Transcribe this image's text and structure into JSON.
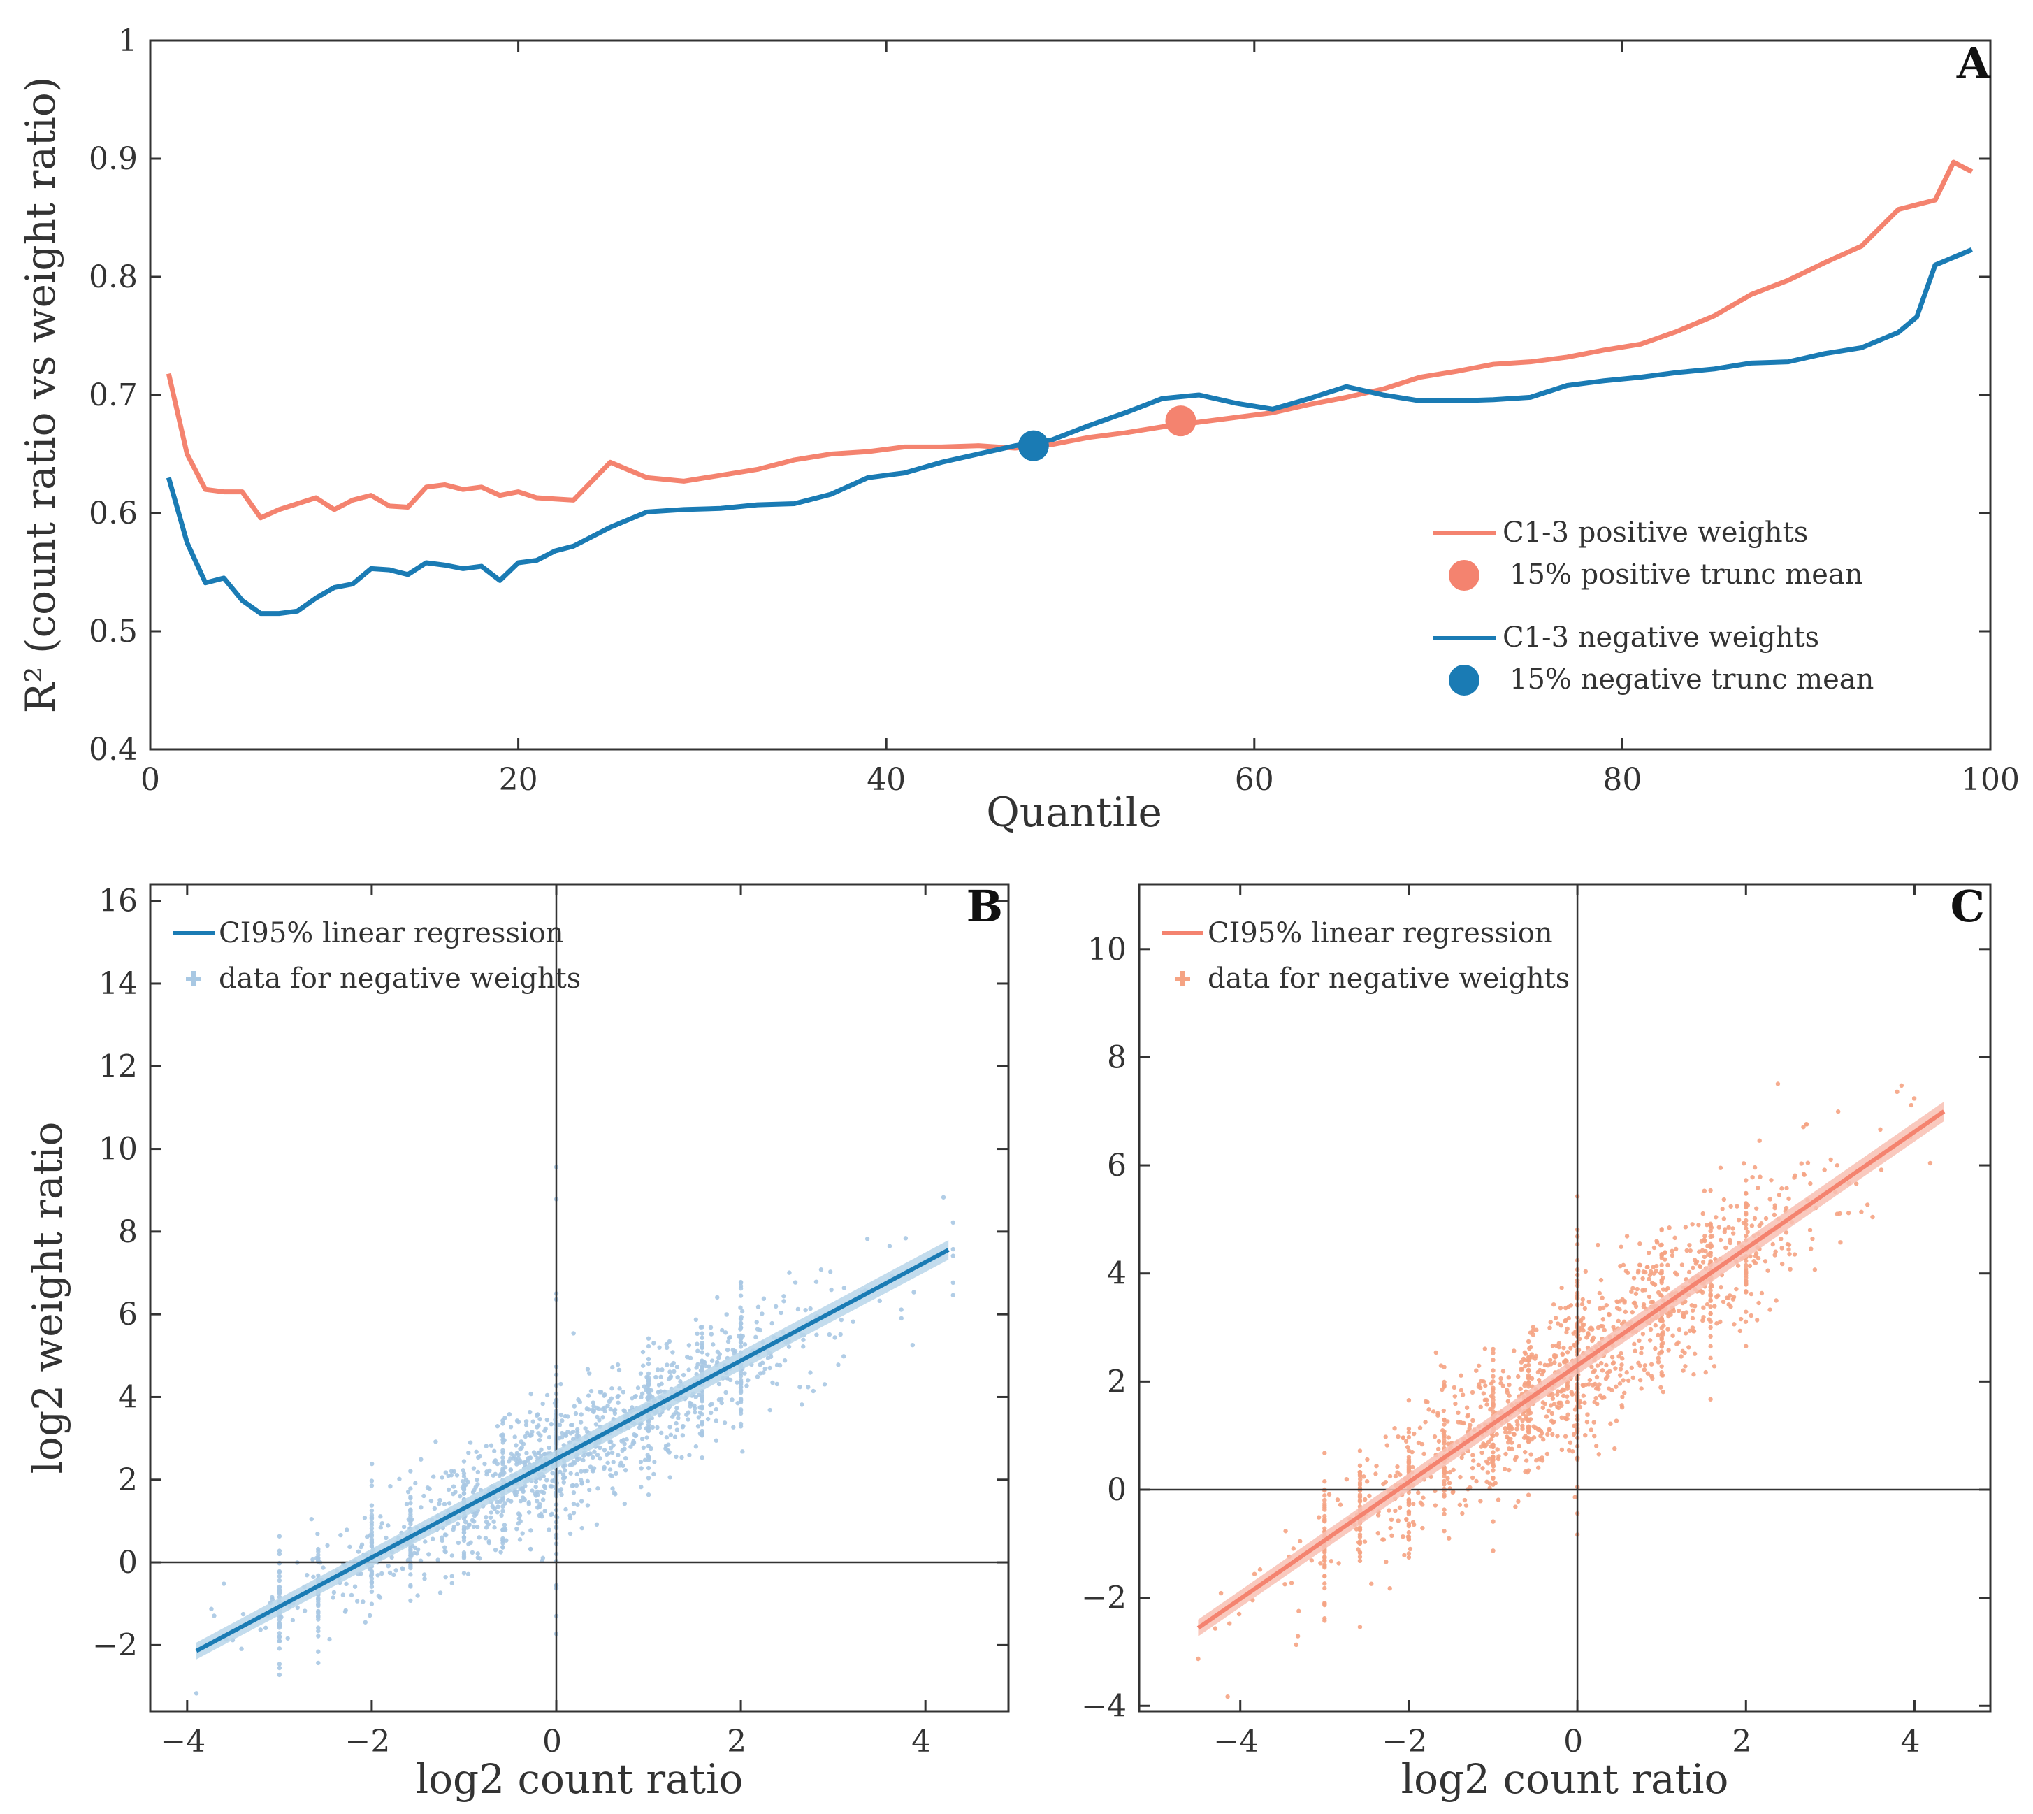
{
  "colors": {
    "positive": "#f4836f",
    "negative": "#1a7bb4",
    "neg_points": "#a8c8e3",
    "pos_points": "#f5a383",
    "ci_neg": "#b9d6ea",
    "ci_pos": "#f8c0b3"
  },
  "chart_data": [
    {
      "panel": "A",
      "type": "line",
      "xlabel": "Quantile",
      "ylabel": "R² (count ratio vs weight ratio)",
      "xlim": [
        0,
        100
      ],
      "ylim": [
        0.4,
        1
      ],
      "xticks": [
        "0",
        "20",
        "40",
        "60",
        "80",
        "100"
      ],
      "yticks": [
        "0.4",
        "0.5",
        "0.6",
        "0.7",
        "0.8",
        "0.9",
        "1"
      ],
      "legend_position": "lower-right",
      "series": [
        {
          "name": "C1-3 positive weights",
          "color_key": "positive",
          "x": [
            1,
            2,
            3,
            4,
            5,
            6,
            7,
            8,
            9,
            10,
            11,
            12,
            13,
            14,
            15,
            16,
            17,
            18,
            19,
            20,
            21,
            22,
            23,
            25,
            27,
            29,
            31,
            33,
            35,
            37,
            39,
            41,
            43,
            45,
            47,
            49,
            51,
            53,
            55,
            57,
            59,
            61,
            63,
            65,
            67,
            69,
            71,
            73,
            75,
            77,
            79,
            81,
            83,
            85,
            87,
            89,
            91,
            93,
            95,
            97,
            98,
            99
          ],
          "y": [
            0.718,
            0.65,
            0.62,
            0.618,
            0.618,
            0.596,
            0.603,
            0.608,
            0.613,
            0.603,
            0.611,
            0.615,
            0.606,
            0.605,
            0.622,
            0.624,
            0.62,
            0.622,
            0.615,
            0.618,
            0.613,
            0.612,
            0.611,
            0.643,
            0.63,
            0.627,
            0.632,
            0.637,
            0.645,
            0.65,
            0.652,
            0.656,
            0.656,
            0.657,
            0.655,
            0.658,
            0.664,
            0.668,
            0.673,
            0.677,
            0.681,
            0.685,
            0.692,
            0.698,
            0.705,
            0.715,
            0.72,
            0.726,
            0.728,
            0.732,
            0.738,
            0.743,
            0.754,
            0.767,
            0.785,
            0.797,
            0.812,
            0.826,
            0.857,
            0.865,
            0.897,
            0.889
          ]
        },
        {
          "name": "C1-3 negative weights",
          "color_key": "negative",
          "x": [
            1,
            2,
            3,
            4,
            5,
            6,
            7,
            8,
            9,
            10,
            11,
            12,
            13,
            14,
            15,
            16,
            17,
            18,
            19,
            20,
            21,
            22,
            23,
            25,
            27,
            29,
            31,
            33,
            35,
            37,
            39,
            41,
            43,
            45,
            47,
            49,
            51,
            53,
            55,
            57,
            59,
            61,
            63,
            65,
            67,
            69,
            71,
            73,
            75,
            77,
            79,
            81,
            83,
            85,
            87,
            89,
            91,
            93,
            95,
            96,
            97,
            99
          ],
          "y": [
            0.63,
            0.575,
            0.541,
            0.545,
            0.526,
            0.515,
            0.515,
            0.517,
            0.528,
            0.537,
            0.54,
            0.553,
            0.552,
            0.548,
            0.558,
            0.556,
            0.553,
            0.555,
            0.543,
            0.558,
            0.56,
            0.568,
            0.572,
            0.588,
            0.601,
            0.603,
            0.604,
            0.607,
            0.608,
            0.616,
            0.63,
            0.634,
            0.643,
            0.65,
            0.657,
            0.662,
            0.674,
            0.685,
            0.697,
            0.7,
            0.693,
            0.688,
            0.697,
            0.707,
            0.7,
            0.695,
            0.695,
            0.696,
            0.698,
            0.708,
            0.712,
            0.715,
            0.719,
            0.722,
            0.727,
            0.728,
            0.735,
            0.74,
            0.753,
            0.766,
            0.81,
            0.823
          ]
        }
      ],
      "markers": [
        {
          "name": "15% positive trunc mean",
          "x": 56,
          "y": 0.678,
          "color_key": "positive"
        },
        {
          "name": "15% negative trunc mean",
          "x": 48,
          "y": 0.657,
          "color_key": "negative"
        }
      ]
    },
    {
      "panel": "B",
      "type": "scatter",
      "xlabel": "log2 count ratio",
      "ylabel": "log2 weight ratio",
      "xlim": [
        -4.4,
        4.9
      ],
      "ylim": [
        -3.6,
        16.4
      ],
      "xticks": [
        "−4",
        "−2",
        "0",
        "2",
        "4"
      ],
      "yticks": [
        "−2",
        "0",
        "2",
        "4",
        "6",
        "8",
        "10",
        "12",
        "14",
        "16"
      ],
      "legend_position": "top-left",
      "regression": {
        "name": "CI95% linear regression",
        "slope": 1.19,
        "intercept": 2.5,
        "x_range": [
          -3.9,
          4.25
        ],
        "color_key": "negative",
        "ci_color_key": "ci_neg"
      },
      "points": {
        "name": "data for negative weights",
        "color_key": "neg_points",
        "n": 1500,
        "x_range": [
          -3.9,
          4.3
        ],
        "x_mean": 0.3,
        "x_sd": 1.45,
        "noise_sd": 0.75
      }
    },
    {
      "panel": "C",
      "type": "scatter",
      "xlabel": "log2 count ratio",
      "ylabel": "",
      "xlim": [
        -5.2,
        4.9
      ],
      "ylim": [
        -4.1,
        11.2
      ],
      "xticks": [
        "−4",
        "−2",
        "0",
        "2",
        "4"
      ],
      "yticks": [
        "−4",
        "−2",
        "0",
        "2",
        "4",
        "6",
        "8",
        "10"
      ],
      "legend_position": "top-left",
      "regression": {
        "name": "CI95% linear regression",
        "slope": 1.08,
        "intercept": 2.3,
        "x_range": [
          -4.5,
          4.35
        ],
        "color_key": "positive",
        "ci_color_key": "ci_pos"
      },
      "points": {
        "name": "data for negative weights",
        "color_key": "pos_points",
        "n": 1500,
        "x_range": [
          -4.5,
          4.4
        ],
        "x_mean": 0.0,
        "x_sd": 1.5,
        "noise_sd": 0.7
      }
    }
  ]
}
